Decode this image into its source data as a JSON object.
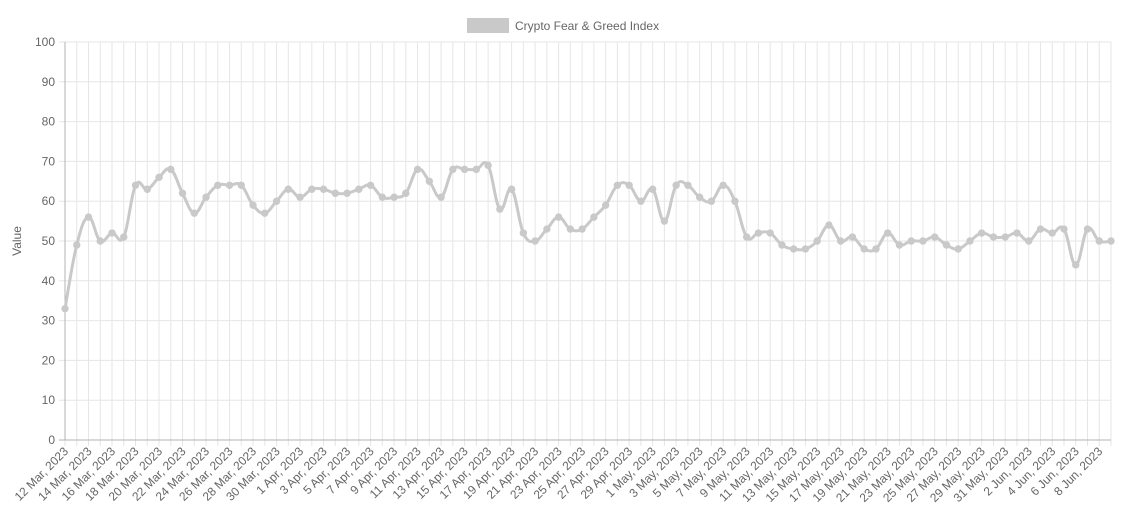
{
  "chart_data": {
    "type": "line",
    "title": "",
    "xlabel": "",
    "ylabel": "Value",
    "ylim": [
      0,
      100
    ],
    "yticks": [
      0,
      10,
      20,
      30,
      40,
      50,
      60,
      70,
      80,
      90,
      100
    ],
    "grid": true,
    "legend": {
      "position": "top-center"
    },
    "series": [
      {
        "name": "Crypto Fear & Greed Index",
        "color": "#c9c9c9",
        "values": [
          33,
          49,
          56,
          50,
          52,
          51,
          64,
          63,
          66,
          68,
          62,
          57,
          61,
          64,
          64,
          64,
          59,
          57,
          60,
          63,
          61,
          63,
          63,
          62,
          62,
          63,
          64,
          61,
          61,
          62,
          68,
          65,
          61,
          68,
          68,
          68,
          69,
          58,
          63,
          52,
          50,
          53,
          56,
          53,
          53,
          56,
          59,
          64,
          64,
          60,
          63,
          55,
          64,
          64,
          61,
          60,
          64,
          60,
          51,
          52,
          52,
          49,
          48,
          48,
          50,
          54,
          50,
          51,
          48,
          48,
          52,
          49,
          50,
          50,
          51,
          49,
          48,
          50,
          52,
          51,
          51,
          52,
          50,
          53,
          52,
          53,
          44,
          53,
          50,
          50
        ]
      }
    ],
    "x": [
      "12 Mar, 2023",
      "13 Mar, 2023",
      "14 Mar, 2023",
      "15 Mar, 2023",
      "16 Mar, 2023",
      "17 Mar, 2023",
      "18 Mar, 2023",
      "19 Mar, 2023",
      "20 Mar, 2023",
      "21 Mar, 2023",
      "22 Mar, 2023",
      "23 Mar, 2023",
      "24 Mar, 2023",
      "25 Mar, 2023",
      "26 Mar, 2023",
      "27 Mar, 2023",
      "28 Mar, 2023",
      "29 Mar, 2023",
      "30 Mar, 2023",
      "31 Mar, 2023",
      "1 Apr, 2023",
      "2 Apr, 2023",
      "3 Apr, 2023",
      "4 Apr, 2023",
      "5 Apr, 2023",
      "6 Apr, 2023",
      "7 Apr, 2023",
      "8 Apr, 2023",
      "9 Apr, 2023",
      "10 Apr, 2023",
      "11 Apr, 2023",
      "12 Apr, 2023",
      "13 Apr, 2023",
      "14 Apr, 2023",
      "15 Apr, 2023",
      "16 Apr, 2023",
      "17 Apr, 2023",
      "18 Apr, 2023",
      "19 Apr, 2023",
      "20 Apr, 2023",
      "21 Apr, 2023",
      "22 Apr, 2023",
      "23 Apr, 2023",
      "24 Apr, 2023",
      "25 Apr, 2023",
      "26 Apr, 2023",
      "27 Apr, 2023",
      "28 Apr, 2023",
      "29 Apr, 2023",
      "30 Apr, 2023",
      "1 May, 2023",
      "2 May, 2023",
      "3 May, 2023",
      "4 May, 2023",
      "5 May, 2023",
      "6 May, 2023",
      "7 May, 2023",
      "8 May, 2023",
      "9 May, 2023",
      "10 May, 2023",
      "11 May, 2023",
      "12 May, 2023",
      "13 May, 2023",
      "14 May, 2023",
      "15 May, 2023",
      "16 May, 2023",
      "17 May, 2023",
      "18 May, 2023",
      "19 May, 2023",
      "20 May, 2023",
      "21 May, 2023",
      "22 May, 2023",
      "23 May, 2023",
      "24 May, 2023",
      "25 May, 2023",
      "26 May, 2023",
      "27 May, 2023",
      "28 May, 2023",
      "29 May, 2023",
      "30 May, 2023",
      "31 May, 2023",
      "1 Jun, 2023",
      "2 Jun, 2023",
      "3 Jun, 2023",
      "4 Jun, 2023",
      "5 Jun, 2023",
      "6 Jun, 2023",
      "7 Jun, 2023",
      "8 Jun, 2023",
      "9 Jun, 2023"
    ],
    "x_tick_labels": [
      "12 Mar, 2023",
      "14 Mar, 2023",
      "16 Mar, 2023",
      "18 Mar, 2023",
      "20 Mar, 2023",
      "22 Mar, 2023",
      "24 Mar, 2023",
      "26 Mar, 2023",
      "28 Mar, 2023",
      "30 Mar, 2023",
      "1 Apr, 2023",
      "3 Apr, 2023",
      "5 Apr, 2023",
      "7 Apr, 2023",
      "9 Apr, 2023",
      "11 Apr, 2023",
      "13 Apr, 2023",
      "15 Apr, 2023",
      "17 Apr, 2023",
      "19 Apr, 2023",
      "21 Apr, 2023",
      "23 Apr, 2023",
      "25 Apr, 2023",
      "27 Apr, 2023",
      "29 Apr, 2023",
      "1 May, 2023",
      "3 May, 2023",
      "5 May, 2023",
      "7 May, 2023",
      "9 May, 2023",
      "11 May, 2023",
      "13 May, 2023",
      "15 May, 2023",
      "17 May, 2023",
      "19 May, 2023",
      "21 May, 2023",
      "23 May, 2023",
      "25 May, 2023",
      "27 May, 2023",
      "29 May, 2023",
      "31 May, 2023",
      "2 Jun, 2023",
      "4 Jun, 2023",
      "6 Jun, 2023",
      "8 Jun, 2023"
    ]
  }
}
